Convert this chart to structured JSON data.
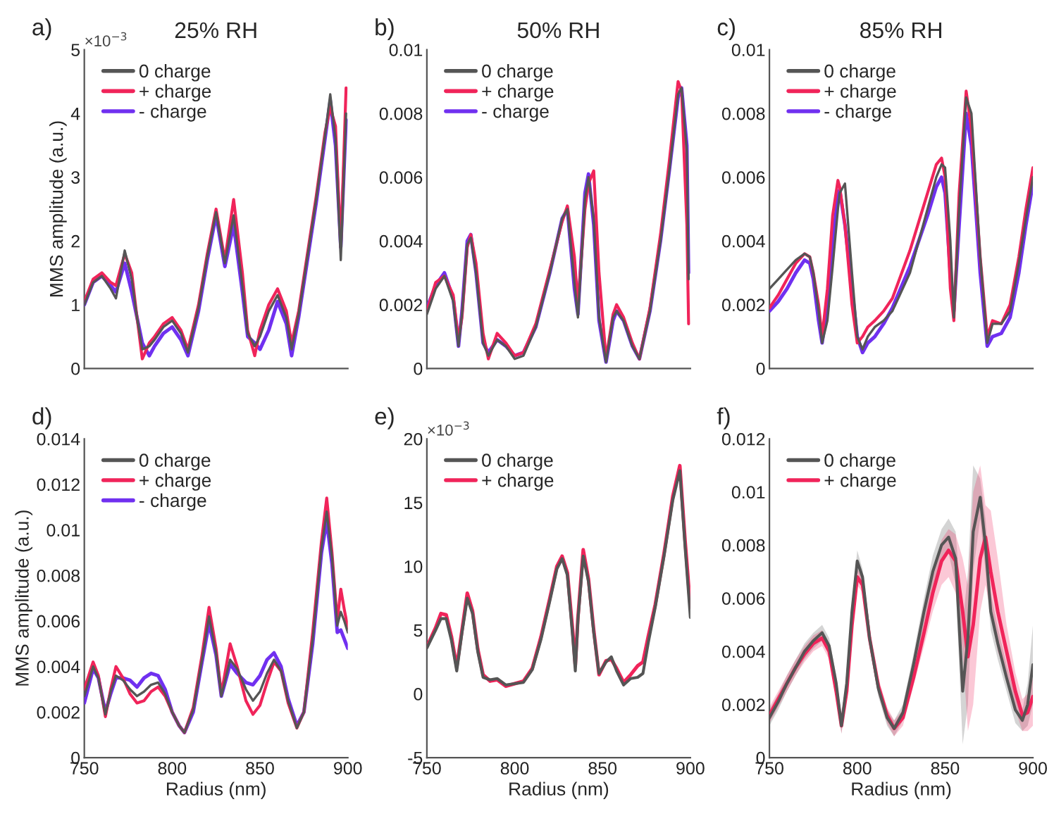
{
  "chart_data": [
    {
      "type": "line",
      "title": "25% RH",
      "ylabel": "MMS amplitude (a.u.)",
      "annotations": [
        "a)",
        "×10$^{−3}$"
      ],
      "legend": "top left",
      "tick_labels": "y",
      "xlim": [
        750,
        900
      ],
      "xticks": [
        750,
        800,
        850,
        900
      ],
      "ylim": [
        0,
        5
      ],
      "yticks": [
        0,
        1,
        2,
        3,
        4,
        5
      ],
      "x": [
        750,
        755,
        760,
        765,
        768,
        773,
        777,
        780,
        783,
        787,
        790,
        795,
        800,
        805,
        809,
        815,
        820,
        825,
        830,
        835,
        840,
        843,
        847,
        850,
        855,
        860,
        865,
        868,
        872,
        877,
        882,
        887,
        890,
        893,
        896,
        899
      ],
      "series": [
        {
          "name": "0 charge",
          "color": "#555555",
          "values": [
            1.0,
            1.35,
            1.45,
            1.25,
            1.1,
            1.85,
            1.4,
            0.8,
            0.3,
            0.35,
            0.45,
            0.65,
            0.75,
            0.55,
            0.25,
            0.95,
            1.75,
            2.45,
            1.65,
            2.4,
            1.3,
            0.55,
            0.35,
            0.5,
            0.9,
            1.15,
            0.8,
            0.3,
            0.85,
            1.75,
            2.65,
            3.65,
            4.3,
            3.6,
            1.7,
            4.0
          ]
        },
        {
          "name": "+ charge",
          "color": "#f0245a",
          "values": [
            1.05,
            1.4,
            1.5,
            1.35,
            1.3,
            1.8,
            1.5,
            0.8,
            0.15,
            0.4,
            0.5,
            0.7,
            0.8,
            0.6,
            0.3,
            1.0,
            1.8,
            2.5,
            1.7,
            2.65,
            1.5,
            0.6,
            0.2,
            0.6,
            1.0,
            1.25,
            0.9,
            0.4,
            0.9,
            1.8,
            2.7,
            3.7,
            4.1,
            3.8,
            1.9,
            4.4
          ]
        },
        {
          "name": "- charge",
          "color": "#7030f0",
          "values": [
            1.0,
            1.35,
            1.45,
            1.3,
            1.2,
            1.65,
            1.2,
            0.8,
            0.4,
            0.2,
            0.35,
            0.55,
            0.65,
            0.45,
            0.2,
            0.9,
            1.7,
            2.4,
            1.6,
            2.25,
            1.2,
            0.5,
            0.4,
            0.3,
            0.6,
            1.05,
            0.7,
            0.2,
            0.8,
            1.7,
            2.6,
            3.6,
            4.2,
            3.5,
            1.9,
            3.9
          ]
        }
      ]
    },
    {
      "type": "line",
      "title": "50% RH",
      "annotations": [
        "b)"
      ],
      "legend": "top left",
      "tick_labels": "y",
      "xlim": [
        750,
        900
      ],
      "xticks": [
        750,
        800,
        850,
        900
      ],
      "ylim": [
        0,
        0.01
      ],
      "yticks": [
        0,
        0.002,
        0.004,
        0.006,
        0.008,
        0.01
      ],
      "x": [
        750,
        755,
        760,
        765,
        768,
        770,
        773,
        775,
        778,
        782,
        785,
        790,
        795,
        800,
        805,
        812,
        820,
        827,
        830,
        834,
        836,
        840,
        842,
        845,
        848,
        852,
        856,
        858,
        862,
        867,
        871,
        877,
        883,
        888,
        893,
        895,
        898,
        899
      ],
      "series": [
        {
          "name": "0 charge",
          "color": "#555555",
          "values": [
            0.0017,
            0.0025,
            0.0029,
            0.0021,
            0.0007,
            0.0017,
            0.0039,
            0.0041,
            0.003,
            0.0008,
            0.0004,
            0.0009,
            0.0007,
            0.0003,
            0.0004,
            0.0013,
            0.003,
            0.0047,
            0.005,
            0.0027,
            0.0016,
            0.0053,
            0.006,
            0.0047,
            0.0016,
            0.0002,
            0.0016,
            0.0018,
            0.0015,
            0.0007,
            0.0003,
            0.0018,
            0.004,
            0.0062,
            0.0086,
            0.0088,
            0.0068,
            0.0028
          ]
        },
        {
          "name": "+ charge",
          "color": "#f0245a",
          "values": [
            0.0018,
            0.0027,
            0.0029,
            0.0023,
            0.0009,
            0.0016,
            0.0038,
            0.0042,
            0.0033,
            0.0011,
            0.0003,
            0.0011,
            0.0008,
            0.0004,
            0.0005,
            0.0014,
            0.0031,
            0.0046,
            0.0051,
            0.0035,
            0.002,
            0.005,
            0.0058,
            0.0062,
            0.003,
            0.0003,
            0.0017,
            0.002,
            0.0016,
            0.0008,
            0.0003,
            0.0019,
            0.0042,
            0.0065,
            0.009,
            0.0087,
            0.0045,
            0.0014
          ]
        },
        {
          "name": "- charge",
          "color": "#7030f0",
          "values": [
            0.0019,
            0.0026,
            0.003,
            0.0022,
            0.0007,
            0.0018,
            0.004,
            0.0042,
            0.003,
            0.0008,
            0.0005,
            0.0009,
            0.0007,
            0.0004,
            0.0005,
            0.0013,
            0.003,
            0.0047,
            0.005,
            0.0025,
            0.0017,
            0.0055,
            0.0061,
            0.0045,
            0.0015,
            0.0002,
            0.0015,
            0.0018,
            0.0015,
            0.0007,
            0.0003,
            0.0018,
            0.004,
            0.0062,
            0.0085,
            0.0088,
            0.007,
            0.003
          ]
        }
      ]
    },
    {
      "type": "line",
      "title": "85% RH",
      "annotations": [
        "c)"
      ],
      "legend": "top left",
      "tick_labels": "y",
      "xlim": [
        750,
        900
      ],
      "xticks": [
        750,
        800,
        850,
        900
      ],
      "ylim": [
        0,
        0.01
      ],
      "yticks": [
        0,
        0.002,
        0.004,
        0.006,
        0.008,
        0.01
      ],
      "x": [
        750,
        755,
        760,
        765,
        770,
        773,
        775,
        778,
        780,
        783,
        786,
        789,
        790,
        793,
        797,
        800,
        803,
        806,
        810,
        815,
        820,
        830,
        840,
        845,
        848,
        850,
        853,
        855,
        858,
        862,
        865,
        870,
        874,
        877,
        882,
        887,
        892,
        896,
        900
      ],
      "series": [
        {
          "name": "0 charge",
          "color": "#555555",
          "values": [
            0.0025,
            0.0028,
            0.0031,
            0.0034,
            0.0036,
            0.0035,
            0.003,
            0.0018,
            0.0008,
            0.0015,
            0.0032,
            0.005,
            0.0055,
            0.0058,
            0.003,
            0.001,
            0.0006,
            0.001,
            0.0013,
            0.0015,
            0.0018,
            0.003,
            0.005,
            0.006,
            0.0064,
            0.0063,
            0.004,
            0.0016,
            0.005,
            0.0085,
            0.008,
            0.0035,
            0.0008,
            0.0014,
            0.0014,
            0.0018,
            0.0033,
            0.0047,
            0.006
          ]
        },
        {
          "name": "+ charge",
          "color": "#f0245a",
          "values": [
            0.0019,
            0.0023,
            0.0028,
            0.0033,
            0.0036,
            0.0035,
            0.003,
            0.002,
            0.001,
            0.0025,
            0.0048,
            0.0059,
            0.0057,
            0.0045,
            0.002,
            0.0008,
            0.001,
            0.0013,
            0.0015,
            0.0018,
            0.0022,
            0.0037,
            0.0055,
            0.0064,
            0.0066,
            0.006,
            0.0025,
            0.0015,
            0.0055,
            0.0087,
            0.0075,
            0.0035,
            0.001,
            0.0015,
            0.0014,
            0.002,
            0.0035,
            0.005,
            0.0063
          ]
        },
        {
          "name": "- charge",
          "color": "#7030f0",
          "values": [
            0.0018,
            0.0021,
            0.0025,
            0.003,
            0.0034,
            0.0033,
            0.0028,
            0.0015,
            0.0008,
            0.002,
            0.004,
            0.0054,
            0.0056,
            0.0045,
            0.0025,
            0.001,
            0.0005,
            0.0008,
            0.001,
            0.0014,
            0.0019,
            0.0032,
            0.0048,
            0.0057,
            0.006,
            0.0055,
            0.003,
            0.0018,
            0.0045,
            0.008,
            0.007,
            0.003,
            0.0007,
            0.001,
            0.0011,
            0.0016,
            0.003,
            0.0045,
            0.0058
          ]
        }
      ]
    },
    {
      "type": "line",
      "xlabel": "Radius (nm)",
      "ylabel": "MMS amplitude (a.u.)",
      "annotations": [
        "d)"
      ],
      "legend": "top left",
      "xlim": [
        750,
        900
      ],
      "xticks": [
        750,
        800,
        850,
        900
      ],
      "ylim": [
        0,
        0.014
      ],
      "yticks": [
        0,
        0.002,
        0.004,
        0.006,
        0.008,
        0.01,
        0.012,
        0.014
      ],
      "x": [
        750,
        755,
        758,
        762,
        765,
        768,
        772,
        776,
        780,
        784,
        788,
        792,
        796,
        800,
        804,
        807,
        812,
        817,
        821,
        825,
        828,
        833,
        837,
        842,
        846,
        850,
        854,
        858,
        862,
        866,
        871,
        875,
        880,
        885,
        888,
        891,
        894,
        896,
        898,
        900
      ],
      "series": [
        {
          "name": "0 charge",
          "color": "#555555",
          "values": [
            0.0027,
            0.004,
            0.0035,
            0.0019,
            0.0029,
            0.0036,
            0.0034,
            0.003,
            0.0027,
            0.0029,
            0.0032,
            0.0033,
            0.0028,
            0.002,
            0.0014,
            0.0011,
            0.0021,
            0.0043,
            0.0062,
            0.0046,
            0.0027,
            0.0043,
            0.0039,
            0.003,
            0.0025,
            0.0029,
            0.0037,
            0.0043,
            0.0038,
            0.0025,
            0.0013,
            0.002,
            0.0052,
            0.0092,
            0.0108,
            0.0088,
            0.0058,
            0.0064,
            0.006,
            0.0055
          ]
        },
        {
          "name": "+ charge",
          "color": "#f0245a",
          "values": [
            0.003,
            0.0042,
            0.0036,
            0.0018,
            0.003,
            0.004,
            0.0035,
            0.0028,
            0.0024,
            0.0025,
            0.0029,
            0.0031,
            0.0027,
            0.002,
            0.0014,
            0.0011,
            0.0022,
            0.0045,
            0.0066,
            0.0048,
            0.0028,
            0.005,
            0.004,
            0.0025,
            0.0019,
            0.0023,
            0.0033,
            0.0042,
            0.0038,
            0.0024,
            0.0013,
            0.002,
            0.0055,
            0.0095,
            0.0114,
            0.009,
            0.006,
            0.0074,
            0.0065,
            0.0057
          ]
        },
        {
          "name": "- charge",
          "color": "#7030f0",
          "values": [
            0.0024,
            0.0039,
            0.0035,
            0.002,
            0.0028,
            0.0035,
            0.0035,
            0.0034,
            0.0031,
            0.0035,
            0.0037,
            0.0036,
            0.003,
            0.002,
            0.0014,
            0.0011,
            0.002,
            0.0042,
            0.0059,
            0.0045,
            0.0027,
            0.0041,
            0.0037,
            0.0033,
            0.0032,
            0.0036,
            0.0043,
            0.0046,
            0.004,
            0.0026,
            0.0014,
            0.002,
            0.005,
            0.009,
            0.0104,
            0.0085,
            0.0055,
            0.0056,
            0.0052,
            0.0048
          ]
        }
      ]
    },
    {
      "type": "line",
      "xlabel": "Radius (nm)",
      "annotations": [
        "e)",
        "×10$^{−3}$"
      ],
      "legend": "top left",
      "xlim": [
        750,
        900
      ],
      "xticks": [
        750,
        800,
        850,
        900
      ],
      "ylim": [
        -5,
        20
      ],
      "yticks": [
        -5,
        0,
        5,
        10,
        15,
        20
      ],
      "x": [
        750,
        755,
        758,
        761,
        764,
        767,
        770,
        773,
        776,
        779,
        782,
        786,
        790,
        795,
        800,
        805,
        810,
        815,
        820,
        824,
        827,
        830,
        833,
        834.5,
        836,
        839,
        842,
        845,
        848,
        852,
        855,
        858,
        862,
        866,
        870,
        873,
        876,
        880,
        885,
        890,
        894,
        897,
        900
      ],
      "series": [
        {
          "name": "0 charge",
          "color": "#555555",
          "values": [
            3.6,
            5.0,
            5.9,
            5.9,
            4.2,
            1.8,
            4.8,
            7.5,
            6.3,
            3.3,
            1.3,
            1.1,
            1.2,
            0.7,
            0.8,
            0.9,
            1.9,
            4.3,
            7.3,
            9.8,
            10.6,
            9.3,
            4.5,
            1.8,
            5.8,
            10.8,
            8.8,
            4.8,
            1.6,
            2.5,
            2.9,
            1.8,
            0.7,
            1.2,
            1.3,
            1.6,
            4.0,
            6.8,
            10.8,
            15.2,
            17.5,
            11.5,
            6.0
          ]
        },
        {
          "name": "+ charge",
          "color": "#f0245a",
          "values": [
            3.7,
            5.2,
            6.3,
            6.2,
            4.5,
            2.1,
            5.0,
            7.9,
            6.5,
            3.5,
            1.5,
            1.0,
            1.1,
            0.6,
            0.8,
            1.0,
            2.0,
            4.5,
            7.5,
            10.0,
            10.8,
            9.5,
            5.0,
            2.2,
            6.0,
            11.3,
            9.0,
            5.0,
            1.5,
            2.6,
            2.7,
            2.0,
            0.9,
            1.5,
            2.2,
            2.5,
            4.5,
            7.0,
            11.0,
            15.5,
            17.9,
            12.0,
            6.8
          ]
        }
      ]
    },
    {
      "type": "line",
      "xlabel": "Radius (nm)",
      "annotations": [
        "f)"
      ],
      "legend": "top left",
      "xlim": [
        750,
        900
      ],
      "xticks": [
        750,
        800,
        850,
        900
      ],
      "ylim": [
        0,
        0.012
      ],
      "yticks": [
        0,
        0.002,
        0.004,
        0.006,
        0.008,
        0.01,
        0.012
      ],
      "x": [
        750,
        755,
        760,
        765,
        770,
        775,
        780,
        784,
        788,
        791,
        794,
        797,
        800,
        803,
        807,
        812,
        817,
        821,
        826,
        832,
        838,
        843,
        848,
        852,
        856,
        860,
        863,
        866,
        870,
        873,
        876,
        880,
        885,
        890,
        894,
        897,
        900
      ],
      "series": [
        {
          "name": "0 charge",
          "color": "#555555",
          "values": [
            0.0015,
            0.0021,
            0.0028,
            0.0034,
            0.004,
            0.0044,
            0.0047,
            0.0042,
            0.0028,
            0.0012,
            0.0028,
            0.0055,
            0.0074,
            0.0068,
            0.0045,
            0.0026,
            0.0015,
            0.0011,
            0.0017,
            0.0035,
            0.0055,
            0.007,
            0.008,
            0.0083,
            0.0075,
            0.0025,
            0.0045,
            0.0085,
            0.0098,
            0.008,
            0.0055,
            0.0043,
            0.003,
            0.0018,
            0.0014,
            0.002,
            0.0035
          ],
          "lower": [
            0.0012,
            0.0018,
            0.0025,
            0.0031,
            0.0037,
            0.0041,
            0.0044,
            0.0039,
            0.0025,
            0.0009,
            0.0025,
            0.0052,
            0.007,
            0.0065,
            0.0042,
            0.0023,
            0.0012,
            0.0008,
            0.0014,
            0.0031,
            0.005,
            0.0064,
            0.0074,
            0.0077,
            0.0065,
            0.0005,
            0.002,
            0.007,
            0.009,
            0.007,
            0.0048,
            0.0037,
            0.0025,
            0.0013,
            0.001,
            0.0012,
            0.002
          ],
          "upper": [
            0.0018,
            0.0024,
            0.0031,
            0.0037,
            0.0043,
            0.0047,
            0.005,
            0.0045,
            0.0031,
            0.0015,
            0.0031,
            0.0058,
            0.0078,
            0.0071,
            0.0048,
            0.0029,
            0.0018,
            0.0014,
            0.002,
            0.0039,
            0.006,
            0.0076,
            0.0086,
            0.009,
            0.0085,
            0.005,
            0.007,
            0.011,
            0.0105,
            0.009,
            0.0062,
            0.0049,
            0.0035,
            0.0023,
            0.0018,
            0.0028,
            0.005
          ]
        },
        {
          "name": "+ charge",
          "color": "#f0245a",
          "values": [
            0.0016,
            0.0022,
            0.0028,
            0.0034,
            0.0039,
            0.0043,
            0.0045,
            0.004,
            0.0025,
            0.0012,
            0.0025,
            0.005,
            0.0068,
            0.0065,
            0.0045,
            0.0027,
            0.0016,
            0.0011,
            0.0015,
            0.003,
            0.0047,
            0.0062,
            0.0074,
            0.0078,
            0.0074,
            0.0055,
            0.0038,
            0.005,
            0.0075,
            0.0083,
            0.007,
            0.0055,
            0.004,
            0.0025,
            0.0016,
            0.0017,
            0.0023
          ],
          "lower": [
            0.0013,
            0.0019,
            0.0025,
            0.0031,
            0.0036,
            0.004,
            0.0042,
            0.0037,
            0.0022,
            0.0009,
            0.0022,
            0.0047,
            0.0065,
            0.0062,
            0.0042,
            0.0024,
            0.0013,
            0.0008,
            0.0012,
            0.0027,
            0.0042,
            0.0055,
            0.0065,
            0.0068,
            0.0062,
            0.004,
            0.001,
            0.002,
            0.0055,
            0.0065,
            0.0055,
            0.004,
            0.003,
            0.0018,
            0.001,
            0.001,
            0.0012
          ],
          "upper": [
            0.0019,
            0.0025,
            0.0031,
            0.0037,
            0.0042,
            0.0046,
            0.0048,
            0.0043,
            0.0028,
            0.0015,
            0.0028,
            0.0053,
            0.0071,
            0.0068,
            0.0048,
            0.003,
            0.0019,
            0.0014,
            0.0018,
            0.0033,
            0.0052,
            0.0069,
            0.0082,
            0.0086,
            0.0084,
            0.0075,
            0.0065,
            0.01,
            0.011,
            0.0095,
            0.0093,
            0.0075,
            0.005,
            0.0032,
            0.0022,
            0.0024,
            0.003
          ]
        }
      ]
    }
  ]
}
